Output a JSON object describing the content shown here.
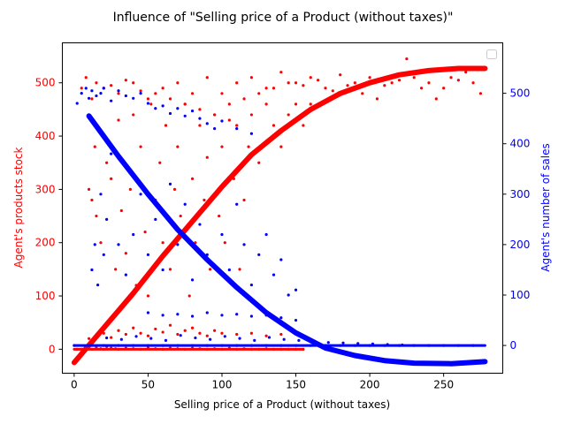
{
  "chart_data": {
    "type": "scatter",
    "title": "Influence of \"Selling price of a Product (without taxes)\"",
    "xlabel": "Selling price of a Product (without taxes)",
    "ylabel_left": "Agent's products stock",
    "ylabel_right": "Agent's number of sales",
    "xlim": [
      -8,
      290
    ],
    "ylim_left": [
      -45,
      575
    ],
    "ylim_right": [
      -55,
      600
    ],
    "x_ticks": [
      0,
      50,
      100,
      150,
      200,
      250
    ],
    "y_ticks_left": [
      0,
      100,
      200,
      300,
      400,
      500
    ],
    "y_ticks_right": [
      0,
      100,
      200,
      300,
      400,
      500
    ],
    "grid": false,
    "legend": "top-right (empty)",
    "colors": {
      "stock": "#ff0000",
      "sales": "#0000ff",
      "axes": "#000000"
    },
    "series": [
      {
        "axis": "left",
        "kind": "scatter",
        "color": "#ff0000",
        "points": [
          [
            2,
            0
          ],
          [
            5,
            0
          ],
          [
            8,
            1
          ],
          [
            10,
            2
          ],
          [
            12,
            0
          ],
          [
            15,
            3
          ],
          [
            18,
            1
          ],
          [
            20,
            0
          ],
          [
            22,
            5
          ],
          [
            25,
            2
          ],
          [
            28,
            1
          ],
          [
            30,
            0
          ],
          [
            35,
            2
          ],
          [
            40,
            1
          ],
          [
            45,
            0
          ],
          [
            50,
            3
          ],
          [
            55,
            1
          ],
          [
            60,
            0
          ],
          [
            65,
            2
          ],
          [
            70,
            1
          ],
          [
            75,
            0
          ],
          [
            80,
            2
          ],
          [
            85,
            1
          ],
          [
            90,
            0
          ],
          [
            95,
            1
          ],
          [
            100,
            0
          ],
          [
            105,
            2
          ],
          [
            110,
            0
          ],
          [
            115,
            1
          ],
          [
            120,
            0
          ],
          [
            125,
            0
          ],
          [
            130,
            1
          ],
          [
            135,
            0
          ],
          [
            140,
            0
          ],
          [
            145,
            0
          ],
          [
            150,
            0
          ],
          [
            155,
            0
          ],
          [
            10,
            20
          ],
          [
            15,
            25
          ],
          [
            20,
            30
          ],
          [
            25,
            22
          ],
          [
            30,
            35
          ],
          [
            35,
            28
          ],
          [
            40,
            40
          ],
          [
            45,
            30
          ],
          [
            50,
            25
          ],
          [
            55,
            38
          ],
          [
            60,
            32
          ],
          [
            65,
            45
          ],
          [
            70,
            28
          ],
          [
            75,
            35
          ],
          [
            80,
            40
          ],
          [
            85,
            30
          ],
          [
            90,
            25
          ],
          [
            95,
            35
          ],
          [
            100,
            30
          ],
          [
            110,
            28
          ],
          [
            120,
            30
          ],
          [
            130,
            25
          ],
          [
            140,
            28
          ],
          [
            10,
            300
          ],
          [
            12,
            280
          ],
          [
            15,
            250
          ],
          [
            14,
            380
          ],
          [
            18,
            200
          ],
          [
            20,
            400
          ],
          [
            22,
            350
          ],
          [
            25,
            320
          ],
          [
            28,
            150
          ],
          [
            30,
            430
          ],
          [
            32,
            260
          ],
          [
            35,
            180
          ],
          [
            38,
            300
          ],
          [
            40,
            440
          ],
          [
            42,
            120
          ],
          [
            45,
            380
          ],
          [
            48,
            220
          ],
          [
            50,
            100
          ],
          [
            52,
            460
          ],
          [
            55,
            280
          ],
          [
            58,
            350
          ],
          [
            60,
            200
          ],
          [
            62,
            420
          ],
          [
            65,
            150
          ],
          [
            68,
            300
          ],
          [
            70,
            380
          ],
          [
            72,
            250
          ],
          [
            75,
            460
          ],
          [
            78,
            100
          ],
          [
            80,
            320
          ],
          [
            82,
            200
          ],
          [
            85,
            420
          ],
          [
            88,
            280
          ],
          [
            90,
            360
          ],
          [
            92,
            150
          ],
          [
            95,
            440
          ],
          [
            98,
            250
          ],
          [
            100,
            380
          ],
          [
            102,
            200
          ],
          [
            105,
            460
          ],
          [
            108,
            320
          ],
          [
            110,
            420
          ],
          [
            112,
            150
          ],
          [
            115,
            280
          ],
          [
            118,
            380
          ],
          [
            120,
            440
          ],
          [
            125,
            350
          ],
          [
            130,
            460
          ],
          [
            135,
            420
          ],
          [
            140,
            380
          ],
          [
            145,
            440
          ],
          [
            150,
            460
          ],
          [
            155,
            420
          ],
          [
            160,
            460
          ],
          [
            12,
            470
          ],
          [
            20,
            490
          ],
          [
            30,
            480
          ],
          [
            40,
            500
          ],
          [
            50,
            470
          ],
          [
            60,
            490
          ],
          [
            70,
            500
          ],
          [
            80,
            480
          ],
          [
            90,
            510
          ],
          [
            100,
            480
          ],
          [
            110,
            500
          ],
          [
            120,
            510
          ],
          [
            130,
            490
          ],
          [
            140,
            520
          ],
          [
            150,
            500
          ],
          [
            160,
            510
          ],
          [
            170,
            490
          ],
          [
            180,
            515
          ],
          [
            190,
            500
          ],
          [
            200,
            510
          ],
          [
            210,
            495
          ],
          [
            220,
            505
          ],
          [
            230,
            510
          ],
          [
            240,
            500
          ],
          [
            250,
            490
          ],
          [
            260,
            505
          ],
          [
            270,
            500
          ],
          [
            275,
            480
          ],
          [
            5,
            490
          ],
          [
            8,
            510
          ],
          [
            15,
            500
          ],
          [
            25,
            495
          ],
          [
            35,
            505
          ],
          [
            45,
            485
          ],
          [
            55,
            480
          ],
          [
            65,
            470
          ],
          [
            75,
            460
          ],
          [
            85,
            450
          ],
          [
            95,
            440
          ],
          [
            105,
            430
          ],
          [
            115,
            470
          ],
          [
            125,
            480
          ],
          [
            135,
            490
          ],
          [
            145,
            500
          ],
          [
            155,
            495
          ],
          [
            165,
            505
          ],
          [
            175,
            485
          ],
          [
            185,
            495
          ],
          [
            195,
            480
          ],
          [
            205,
            470
          ],
          [
            215,
            500
          ],
          [
            225,
            545
          ],
          [
            235,
            490
          ],
          [
            245,
            470
          ],
          [
            255,
            510
          ],
          [
            265,
            520
          ]
        ]
      },
      {
        "axis": "left",
        "kind": "curve",
        "color": "#ff0000",
        "points": [
          [
            0,
            -25
          ],
          [
            20,
            40
          ],
          [
            40,
            105
          ],
          [
            60,
            175
          ],
          [
            80,
            240
          ],
          [
            100,
            305
          ],
          [
            120,
            365
          ],
          [
            140,
            410
          ],
          [
            160,
            450
          ],
          [
            180,
            480
          ],
          [
            200,
            500
          ],
          [
            220,
            515
          ],
          [
            240,
            523
          ],
          [
            260,
            527
          ],
          [
            278,
            527
          ]
        ]
      },
      {
        "axis": "right",
        "kind": "scatter",
        "color": "#0000ff",
        "points": [
          [
            0,
            0
          ],
          [
            10,
            0
          ],
          [
            20,
            0
          ],
          [
            30,
            0
          ],
          [
            40,
            0
          ],
          [
            50,
            0
          ],
          [
            60,
            0
          ],
          [
            70,
            0
          ],
          [
            80,
            0
          ],
          [
            90,
            0
          ],
          [
            100,
            0
          ],
          [
            110,
            0
          ],
          [
            120,
            0
          ],
          [
            130,
            0
          ],
          [
            140,
            0
          ],
          [
            150,
            0
          ],
          [
            160,
            0
          ],
          [
            170,
            0
          ],
          [
            180,
            0
          ],
          [
            190,
            0
          ],
          [
            200,
            0
          ],
          [
            210,
            0
          ],
          [
            220,
            0
          ],
          [
            230,
            0
          ],
          [
            240,
            0
          ],
          [
            250,
            0
          ],
          [
            260,
            0
          ],
          [
            270,
            0
          ],
          [
            12,
            10
          ],
          [
            22,
            15
          ],
          [
            32,
            12
          ],
          [
            42,
            18
          ],
          [
            52,
            14
          ],
          [
            62,
            10
          ],
          [
            72,
            20
          ],
          [
            82,
            15
          ],
          [
            92,
            12
          ],
          [
            102,
            18
          ],
          [
            112,
            14
          ],
          [
            122,
            10
          ],
          [
            132,
            16
          ],
          [
            142,
            12
          ],
          [
            152,
            10
          ],
          [
            162,
            8
          ],
          [
            172,
            6
          ],
          [
            182,
            5
          ],
          [
            192,
            4
          ],
          [
            202,
            3
          ],
          [
            212,
            2
          ],
          [
            222,
            1
          ],
          [
            12,
            150
          ],
          [
            14,
            200
          ],
          [
            16,
            120
          ],
          [
            18,
            300
          ],
          [
            20,
            180
          ],
          [
            22,
            250
          ],
          [
            25,
            380
          ],
          [
            30,
            200
          ],
          [
            35,
            140
          ],
          [
            40,
            220
          ],
          [
            45,
            300
          ],
          [
            50,
            180
          ],
          [
            55,
            250
          ],
          [
            60,
            150
          ],
          [
            65,
            320
          ],
          [
            70,
            200
          ],
          [
            75,
            280
          ],
          [
            80,
            130
          ],
          [
            85,
            240
          ],
          [
            90,
            180
          ],
          [
            95,
            300
          ],
          [
            100,
            220
          ],
          [
            105,
            150
          ],
          [
            110,
            280
          ],
          [
            115,
            200
          ],
          [
            120,
            120
          ],
          [
            125,
            180
          ],
          [
            130,
            220
          ],
          [
            135,
            140
          ],
          [
            140,
            170
          ],
          [
            145,
            100
          ],
          [
            150,
            110
          ],
          [
            50,
            65
          ],
          [
            60,
            60
          ],
          [
            70,
            62
          ],
          [
            80,
            58
          ],
          [
            90,
            65
          ],
          [
            100,
            60
          ],
          [
            110,
            62
          ],
          [
            120,
            58
          ],
          [
            130,
            60
          ],
          [
            140,
            55
          ],
          [
            150,
            50
          ],
          [
            2,
            480
          ],
          [
            5,
            500
          ],
          [
            8,
            510
          ],
          [
            10,
            490
          ],
          [
            12,
            505
          ],
          [
            15,
            495
          ],
          [
            18,
            500
          ],
          [
            20,
            510
          ],
          [
            25,
            485
          ],
          [
            30,
            505
          ],
          [
            35,
            495
          ],
          [
            40,
            490
          ],
          [
            45,
            500
          ],
          [
            50,
            480
          ],
          [
            55,
            470
          ],
          [
            60,
            475
          ],
          [
            65,
            460
          ],
          [
            70,
            470
          ],
          [
            75,
            455
          ],
          [
            80,
            465
          ],
          [
            85,
            450
          ],
          [
            90,
            440
          ],
          [
            95,
            430
          ],
          [
            100,
            445
          ],
          [
            110,
            430
          ],
          [
            120,
            420
          ]
        ]
      },
      {
        "axis": "right",
        "kind": "curve",
        "color": "#0000ff",
        "points": [
          [
            10,
            455
          ],
          [
            30,
            375
          ],
          [
            50,
            300
          ],
          [
            70,
            230
          ],
          [
            90,
            170
          ],
          [
            110,
            115
          ],
          [
            130,
            65
          ],
          [
            150,
            25
          ],
          [
            170,
            -5
          ],
          [
            190,
            -20
          ],
          [
            210,
            -30
          ],
          [
            230,
            -35
          ],
          [
            255,
            -36
          ],
          [
            278,
            -32
          ]
        ]
      },
      {
        "axis": "right",
        "kind": "line",
        "color": "#0000ff",
        "points": [
          [
            0,
            0
          ],
          [
            278,
            0
          ]
        ]
      },
      {
        "axis": "left",
        "kind": "line",
        "color": "#ff0000",
        "points": [
          [
            0,
            0
          ],
          [
            155,
            0
          ]
        ]
      }
    ]
  }
}
